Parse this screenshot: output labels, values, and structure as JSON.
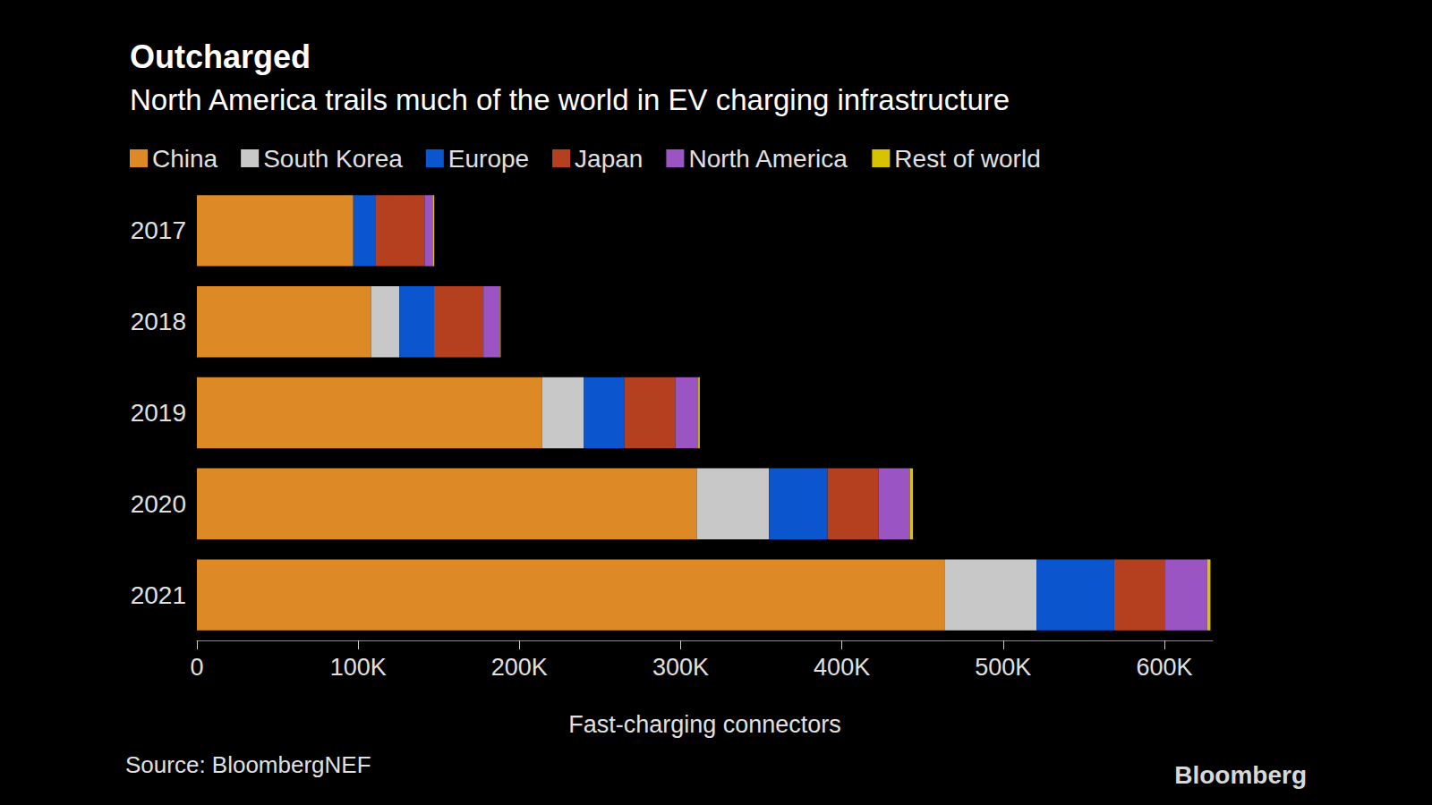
{
  "chart_data": {
    "type": "bar",
    "title": "Outcharged",
    "subtitle": "North America trails much of the world in EV charging infrastructure",
    "x_label": "Fast-charging connectors",
    "source": "Source: BloombergNEF",
    "credit": "Bloomberg",
    "orientation": "horizontal",
    "stacked": true,
    "grid": false,
    "legend": "top-left",
    "categories": [
      "2017",
      "2018",
      "2019",
      "2020",
      "2021"
    ],
    "series": [
      {
        "name": "China",
        "color": "#dd8a26",
        "values": [
          97000,
          108000,
          214000,
          310000,
          464000
        ]
      },
      {
        "name": "South Korea",
        "color": "#c8c8c8",
        "values": [
          0,
          17600,
          26000,
          44800,
          56700
        ]
      },
      {
        "name": "Europe",
        "color": "#0b55cf",
        "values": [
          13600,
          21500,
          25000,
          36300,
          48200
        ]
      },
      {
        "name": "Japan",
        "color": "#b5401f",
        "values": [
          30600,
          30600,
          31700,
          31700,
          31700
        ]
      },
      {
        "name": "North America",
        "color": "#9b55c3",
        "values": [
          5000,
          10200,
          14200,
          19300,
          26000
        ]
      },
      {
        "name": "Rest of world",
        "color": "#d9c300",
        "values": [
          1000,
          500,
          1000,
          2000,
          2000
        ]
      }
    ],
    "xlim": [
      0,
      630000
    ],
    "xticks": [
      0,
      {
        "value": 100000,
        "label": "100K"
      },
      {
        "value": 200000,
        "label": "200K"
      },
      {
        "value": 300000,
        "label": "300K"
      },
      {
        "value": 400000,
        "label": "400K"
      },
      {
        "value": 500000,
        "label": "500K"
      },
      {
        "value": 600000,
        "label": "600K"
      }
    ]
  }
}
